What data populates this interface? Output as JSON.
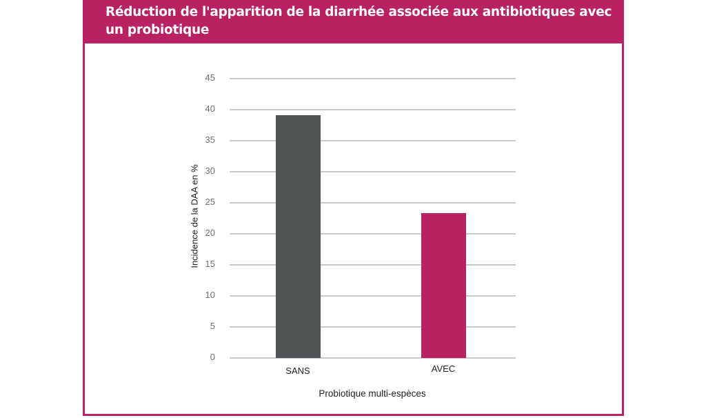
{
  "header": {
    "title": "Réduction de l'apparition de la diarrhée associée aux antibiotiques avec un probiotique"
  },
  "colors": {
    "accent": "#b82162",
    "bar_sans": "#505455",
    "bar_avec": "#b82162",
    "grid": "#c8c8cc"
  },
  "chart_data": {
    "type": "bar",
    "title": "Réduction de l'apparition de la diarrhée associée aux antibiotiques avec un probiotique",
    "xlabel": "Probiotique multi-espèces",
    "ylabel": "Incidence de la DAA en %",
    "categories": [
      "SANS",
      "AVEC"
    ],
    "values": [
      39.1,
      23.3
    ],
    "bar_colors": [
      "#505455",
      "#b82162"
    ],
    "ylim": [
      0,
      45
    ],
    "yticks": [
      0,
      5,
      10,
      15,
      20,
      25,
      30,
      35,
      40,
      45
    ],
    "grid": true,
    "legend": null
  },
  "axis": {
    "yticks": [
      "0",
      "5",
      "10",
      "15",
      "20",
      "25",
      "30",
      "35",
      "40",
      "45"
    ],
    "xticks": [
      "SANS",
      "AVEC"
    ],
    "xlabel": "Probiotique multi-espèces",
    "ylabel": "Incidence de la DAA en %"
  }
}
